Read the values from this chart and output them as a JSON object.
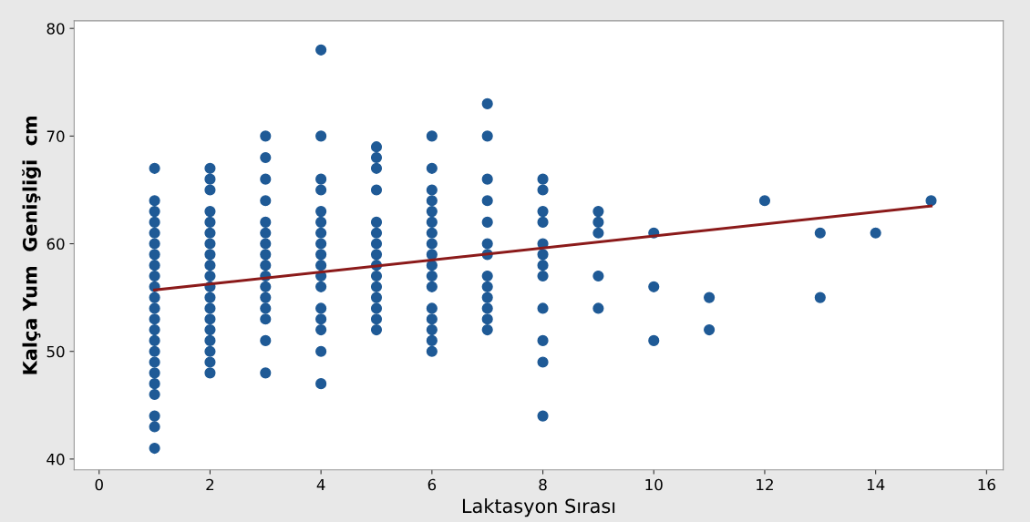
{
  "chart_data": {
    "type": "scatter",
    "xlabel": "Laktasyon Sırası",
    "ylabel": "Kalça Yum  Genişliği  cm",
    "xlim": [
      -0.45,
      16.3
    ],
    "ylim": [
      39,
      80.7
    ],
    "xticks": [
      0,
      2,
      4,
      6,
      8,
      10,
      12,
      14,
      16
    ],
    "yticks": [
      40,
      50,
      60,
      70,
      80
    ],
    "grid": false,
    "series": [
      {
        "color": "#1f5a96",
        "marker": "circle",
        "x": [
          1,
          1,
          1,
          1,
          1,
          1,
          1,
          1,
          1,
          1,
          1,
          1,
          1,
          1,
          1,
          1,
          1,
          1,
          1,
          1,
          1,
          1,
          1,
          2,
          2,
          2,
          2,
          2,
          2,
          2,
          2,
          2,
          2,
          2,
          2,
          2,
          2,
          2,
          2,
          2,
          2,
          2,
          3,
          3,
          3,
          3,
          3,
          3,
          3,
          3,
          3,
          3,
          3,
          3,
          3,
          3,
          3,
          3,
          4,
          4,
          4,
          4,
          4,
          4,
          4,
          4,
          4,
          4,
          4,
          4,
          4,
          4,
          4,
          4,
          4,
          5,
          5,
          5,
          5,
          5,
          5,
          5,
          5,
          5,
          5,
          5,
          5,
          5,
          5,
          5,
          6,
          6,
          6,
          6,
          6,
          6,
          6,
          6,
          6,
          6,
          6,
          6,
          6,
          6,
          6,
          6,
          6,
          7,
          7,
          7,
          7,
          7,
          7,
          7,
          7,
          7,
          7,
          7,
          7,
          7,
          8,
          8,
          8,
          8,
          8,
          8,
          8,
          8,
          8,
          8,
          8,
          8,
          9,
          9,
          9,
          9,
          9,
          10,
          10,
          10,
          11,
          11,
          12,
          13,
          13,
          14,
          15
        ],
        "values": [
          67,
          64,
          63,
          62,
          61,
          60,
          59,
          58,
          57,
          56,
          55,
          54,
          53,
          52,
          51,
          50,
          49,
          48,
          47,
          46,
          44,
          43,
          41,
          67,
          66,
          65,
          63,
          62,
          61,
          60,
          59,
          58,
          57,
          56,
          55,
          54,
          53,
          52,
          51,
          50,
          49,
          48,
          70,
          68,
          66,
          64,
          62,
          61,
          60,
          59,
          58,
          57,
          56,
          55,
          54,
          53,
          51,
          48,
          78,
          70,
          66,
          65,
          63,
          62,
          61,
          60,
          59,
          58,
          57,
          56,
          54,
          53,
          52,
          50,
          47,
          69,
          68,
          67,
          65,
          62,
          61,
          60,
          59,
          58,
          57,
          56,
          55,
          54,
          53,
          52,
          70,
          67,
          65,
          64,
          63,
          62,
          61,
          60,
          59,
          58,
          57,
          56,
          54,
          53,
          52,
          51,
          50,
          73,
          70,
          66,
          64,
          62,
          60,
          59,
          57,
          56,
          55,
          54,
          53,
          52,
          66,
          65,
          63,
          62,
          60,
          59,
          58,
          57,
          54,
          51,
          49,
          44,
          63,
          62,
          61,
          57,
          54,
          61,
          56,
          51,
          55,
          52,
          64,
          61,
          55,
          61,
          64
        ]
      },
      {
        "type": "line",
        "marker": "none",
        "color": "#8b1a1a",
        "x": [
          1,
          15
        ],
        "values": [
          55.7,
          63.5
        ]
      }
    ]
  }
}
